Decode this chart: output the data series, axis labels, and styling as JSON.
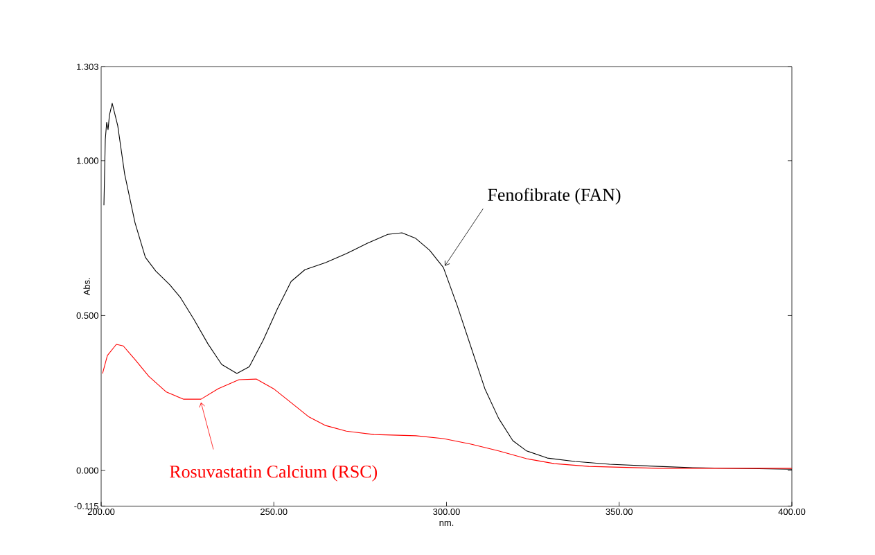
{
  "chart_data": {
    "type": "line",
    "xlabel": "nm.",
    "ylabel": "Abs.",
    "xlim": [
      200,
      400
    ],
    "xticks": [
      {
        "value": 200,
        "label": "200.00"
      },
      {
        "value": 250,
        "label": "250.00"
      },
      {
        "value": 300,
        "label": "300.00"
      },
      {
        "value": 350,
        "label": "350.00"
      },
      {
        "value": 400,
        "label": "400.00"
      }
    ],
    "ylim": [
      -0.115,
      1.303
    ],
    "yticks": [
      {
        "value": -0.115,
        "label": "-0.115"
      },
      {
        "value": 0,
        "label": "0.000"
      },
      {
        "value": 0.5,
        "label": "0.500"
      },
      {
        "value": 1,
        "label": "1.000"
      },
      {
        "value": 1.303,
        "label": "1.303"
      }
    ],
    "grid": false,
    "marker": "none",
    "line_style": "solid",
    "series": [
      {
        "color": "#000000",
        "x": [
          200.8,
          201.2,
          201.6,
          202,
          202.4,
          203.2,
          204.8,
          206.8,
          209.8,
          212.8,
          215.8,
          219.9,
          222.9,
          226.9,
          230.9,
          234.9,
          239.3,
          242.9,
          246.9,
          251,
          255,
          259,
          265,
          271,
          277,
          283,
          287.1,
          291.1,
          295.1,
          299.1,
          303.1,
          307.1,
          311.1,
          315.1,
          319.2,
          323.2,
          329.2,
          337.2,
          347.2,
          361.3,
          371.3,
          400
        ],
        "values": [
          0.856,
          1.068,
          1.124,
          1.1,
          1.147,
          1.185,
          1.113,
          0.957,
          0.8,
          0.688,
          0.644,
          0.599,
          0.559,
          0.487,
          0.409,
          0.342,
          0.313,
          0.335,
          0.42,
          0.521,
          0.61,
          0.648,
          0.671,
          0.7,
          0.733,
          0.762,
          0.767,
          0.749,
          0.711,
          0.655,
          0.532,
          0.398,
          0.264,
          0.168,
          0.096,
          0.063,
          0.04,
          0.029,
          0.02,
          0.013,
          0.009,
          0.004
        ]
      },
      {
        "color": "#ff0000",
        "x": [
          200.4,
          201.8,
          204.4,
          206.4,
          209.8,
          213.8,
          218.9,
          223.9,
          228.9,
          233.9,
          239.9,
          244.9,
          249.9,
          255,
          260,
          265,
          271,
          279,
          291.1,
          299.1,
          307.1,
          315.1,
          323.2,
          331.2,
          341.2,
          361.3,
          400
        ],
        "values": [
          0.313,
          0.371,
          0.407,
          0.402,
          0.358,
          0.304,
          0.253,
          0.23,
          0.23,
          0.264,
          0.293,
          0.295,
          0.264,
          0.219,
          0.174,
          0.145,
          0.127,
          0.116,
          0.112,
          0.103,
          0.085,
          0.063,
          0.038,
          0.022,
          0.013,
          0.007,
          0.007
        ]
      }
    ],
    "annotations": [
      {
        "text": "Fenofibrate (FAN)",
        "x": 299.5,
        "y": 0.66
      },
      {
        "text": "Rosuvastatin Calcium (RSC)",
        "x": 228.9,
        "y": 0.22
      }
    ]
  }
}
